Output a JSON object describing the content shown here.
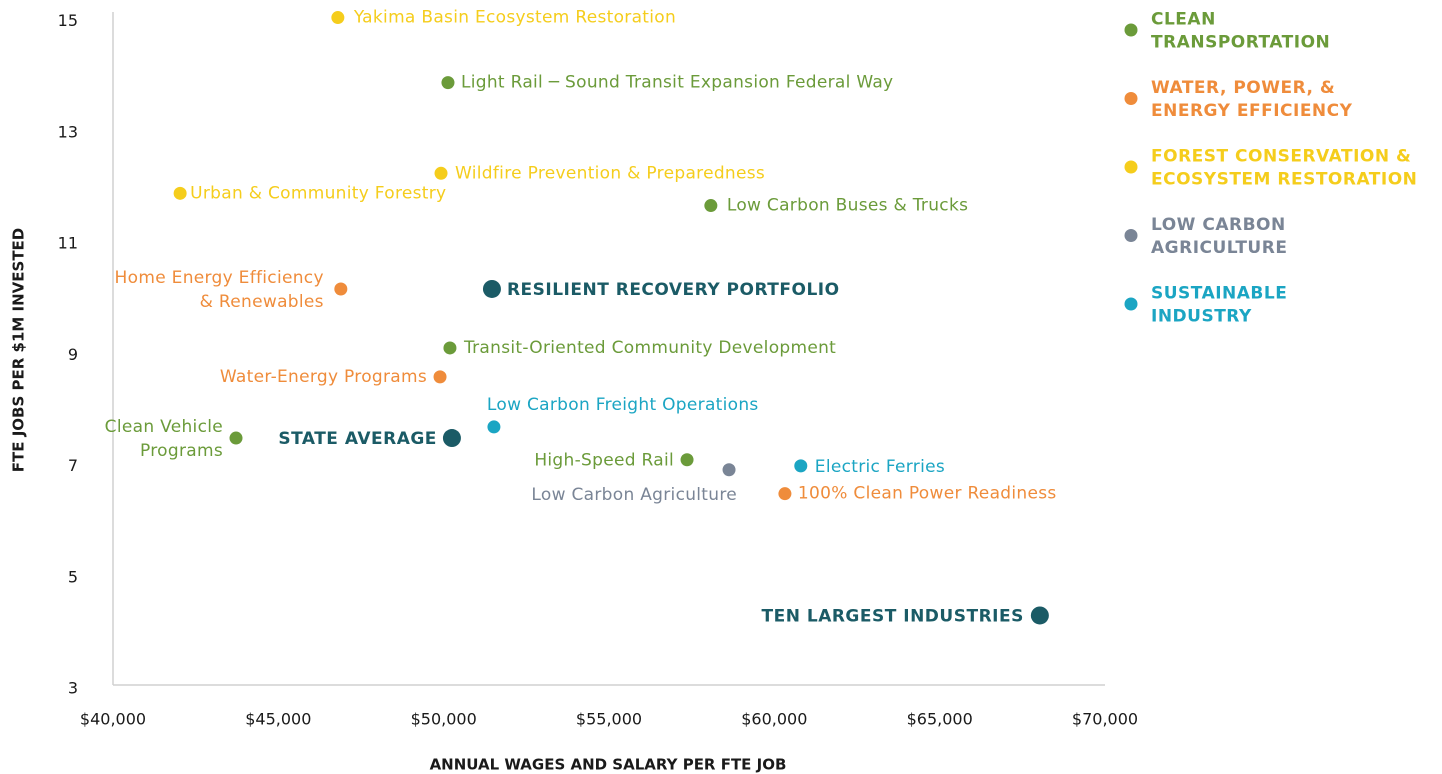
{
  "chart_data": {
    "type": "scatter",
    "xlabel": "ANNUAL WAGES AND SALARY PER FTE JOB",
    "ylabel": "FTE JOBS PER $1M INVESTED",
    "xlim": [
      40000,
      70000
    ],
    "ylim": [
      3,
      15.1
    ],
    "xticks": [
      {
        "value": 40000,
        "label": "$40,000"
      },
      {
        "value": 45000,
        "label": "$45,000"
      },
      {
        "value": 50000,
        "label": "$50,000"
      },
      {
        "value": 55000,
        "label": "$55,000"
      },
      {
        "value": 60000,
        "label": "$60,000"
      },
      {
        "value": 65000,
        "label": "$65,000"
      },
      {
        "value": 70000,
        "label": "$70,000"
      }
    ],
    "yticks": [
      3,
      5,
      7,
      9,
      11,
      13,
      15
    ],
    "grid": false,
    "legend": "right",
    "series": [
      {
        "name": "CLEAN\nTRANSPORTATION",
        "color": "#6b9b3a",
        "x": [
          50130,
          58080,
          50190,
          43720,
          57360
        ],
        "values": [
          13.83,
          11.62,
          9.06,
          7.44,
          7.05
        ],
        "labels": [
          "Light Rail ─ Sound Transit Expansion Federal Way",
          "Low Carbon Buses & Trucks",
          "Transit-Oriented Community Development",
          "Clean Vehicle\nPrograms",
          "High-Speed Rail"
        ]
      },
      {
        "name": "WATER, POWER, &\nENERGY EFFICIENCY",
        "color": "#ef8c3b",
        "x": [
          46890,
          49890,
          60320
        ],
        "values": [
          10.12,
          8.54,
          6.44
        ],
        "labels": [
          "Home Energy Efficiency\n& Renewables",
          "Water-Energy Programs",
          "100% Clean Power Readiness"
        ]
      },
      {
        "name": "FOREST CONSERVATION &\nECOSYSTEM RESTORATION",
        "color": "#f5cd1c",
        "x": [
          46800,
          49920,
          42030
        ],
        "values": [
          15.0,
          12.2,
          11.84
        ],
        "labels": [
          "Yakima Basin Ecosystem Restoration",
          "Wildfire Prevention & Preparedness",
          "Urban & Community Forestry"
        ]
      },
      {
        "name": "LOW CARBON\nAGRICULTURE",
        "color": "#7a8596",
        "x": [
          58630
        ],
        "values": [
          6.87
        ],
        "labels": [
          "Low Carbon Agriculture"
        ]
      },
      {
        "name": "SUSTAINABLE\nINDUSTRY",
        "color": "#1ba5c3",
        "x": [
          51520,
          60800
        ],
        "values": [
          7.64,
          6.94
        ],
        "labels": [
          "Low Carbon Freight Operations",
          "Electric Ferries"
        ]
      },
      {
        "color": "#1b5b66",
        "x": [
          51460,
          50250,
          68030
        ],
        "values": [
          10.12,
          7.44,
          4.25
        ],
        "labels": [
          "RESILIENT RECOVERY PORTFOLIO",
          "STATE AVERAGE",
          "TEN LARGEST INDUSTRIES"
        ]
      }
    ]
  }
}
